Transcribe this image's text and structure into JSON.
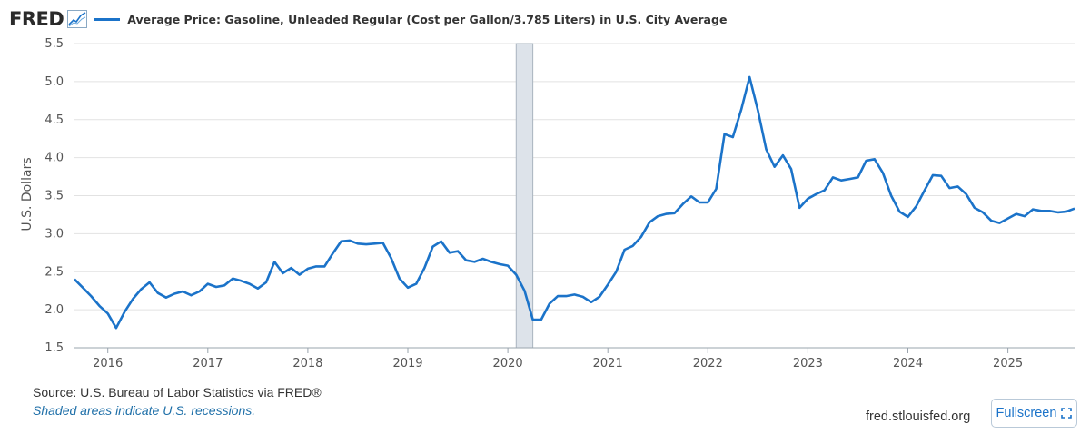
{
  "header": {
    "logo_text": "FRED",
    "logo_icon": "line-chart-icon",
    "series_title": "Average Price: Gasoline, Unleaded Regular (Cost per Gallon/3.785 Liters) in U.S. City Average"
  },
  "footer": {
    "source": "U.S. Bureau of Labor Statistics via FRED®",
    "note": "Shaded areas indicate U.S. recessions.",
    "site": "fred.stlouisfed.org",
    "fullscreen_label": "Fullscreen",
    "fullscreen_icon": "expand-icon"
  },
  "colors": {
    "series": "#1b73c9",
    "recession": "#dde3ea",
    "grid": "#e2e2e2"
  },
  "chart_data": {
    "type": "line",
    "title": "Average Price: Gasoline, Unleaded Regular (Cost per Gallon/3.785 Liters) in U.S. City Average",
    "xlabel": "",
    "ylabel": "U.S. Dollars",
    "xlim": [
      "2015-09",
      "2025-09"
    ],
    "ylim": [
      1.5,
      5.5
    ],
    "y_ticks": [
      "1.5",
      "2.0",
      "2.5",
      "3.0",
      "3.5",
      "4.0",
      "4.5",
      "5.0",
      "5.5"
    ],
    "x_ticks": [
      "2016",
      "2017",
      "2018",
      "2019",
      "2020",
      "2021",
      "2022",
      "2023",
      "2024",
      "2025"
    ],
    "grid": "horizontal",
    "recessions": [
      {
        "start": "2020-02",
        "end": "2020-04"
      }
    ],
    "series": [
      {
        "x": [
          "2015-09",
          "2015-10",
          "2015-11",
          "2015-12",
          "2016-01",
          "2016-02",
          "2016-03",
          "2016-04",
          "2016-05",
          "2016-06",
          "2016-07",
          "2016-08",
          "2016-09",
          "2016-10",
          "2016-11",
          "2016-12",
          "2017-01",
          "2017-02",
          "2017-03",
          "2017-04",
          "2017-05",
          "2017-06",
          "2017-07",
          "2017-08",
          "2017-09",
          "2017-10",
          "2017-11",
          "2017-12",
          "2018-01",
          "2018-02",
          "2018-03",
          "2018-04",
          "2018-05",
          "2018-06",
          "2018-07",
          "2018-08",
          "2018-09",
          "2018-10",
          "2018-11",
          "2018-12",
          "2019-01",
          "2019-02",
          "2019-03",
          "2019-04",
          "2019-05",
          "2019-06",
          "2019-07",
          "2019-08",
          "2019-09",
          "2019-10",
          "2019-11",
          "2019-12",
          "2020-01",
          "2020-02",
          "2020-03",
          "2020-04",
          "2020-05",
          "2020-06",
          "2020-07",
          "2020-08",
          "2020-09",
          "2020-10",
          "2020-11",
          "2020-12",
          "2021-01",
          "2021-02",
          "2021-03",
          "2021-04",
          "2021-05",
          "2021-06",
          "2021-07",
          "2021-08",
          "2021-09",
          "2021-10",
          "2021-11",
          "2021-12",
          "2022-01",
          "2022-02",
          "2022-03",
          "2022-04",
          "2022-05",
          "2022-06",
          "2022-07",
          "2022-08",
          "2022-09",
          "2022-10",
          "2022-11",
          "2022-12",
          "2023-01",
          "2023-02",
          "2023-03",
          "2023-04",
          "2023-05",
          "2023-06",
          "2023-07",
          "2023-08",
          "2023-09",
          "2023-10",
          "2023-11",
          "2023-12",
          "2024-01",
          "2024-02",
          "2024-03",
          "2024-04",
          "2024-05",
          "2024-06",
          "2024-07",
          "2024-08",
          "2024-09",
          "2024-10",
          "2024-11",
          "2024-12",
          "2025-01",
          "2025-02",
          "2025-03",
          "2025-04",
          "2025-05",
          "2025-06",
          "2025-07",
          "2025-08",
          "2025-09"
        ],
        "values": [
          2.4,
          2.29,
          2.18,
          2.05,
          1.95,
          1.76,
          1.97,
          2.14,
          2.27,
          2.36,
          2.22,
          2.16,
          2.21,
          2.24,
          2.19,
          2.24,
          2.34,
          2.3,
          2.32,
          2.41,
          2.38,
          2.34,
          2.28,
          2.36,
          2.63,
          2.48,
          2.55,
          2.46,
          2.54,
          2.57,
          2.57,
          2.74,
          2.9,
          2.91,
          2.87,
          2.86,
          2.87,
          2.88,
          2.68,
          2.41,
          2.29,
          2.34,
          2.55,
          2.83,
          2.9,
          2.75,
          2.77,
          2.65,
          2.63,
          2.67,
          2.63,
          2.6,
          2.58,
          2.46,
          2.25,
          1.87,
          1.87,
          2.08,
          2.18,
          2.18,
          2.2,
          2.17,
          2.1,
          2.17,
          2.33,
          2.5,
          2.79,
          2.84,
          2.96,
          3.15,
          3.23,
          3.26,
          3.27,
          3.39,
          3.49,
          3.41,
          3.41,
          3.59,
          4.31,
          4.27,
          4.63,
          5.06,
          4.62,
          4.11,
          3.88,
          4.03,
          3.85,
          3.34,
          3.46,
          3.52,
          3.57,
          3.74,
          3.7,
          3.72,
          3.74,
          3.96,
          3.98,
          3.8,
          3.5,
          3.29,
          3.22,
          3.36,
          3.57,
          3.77,
          3.76,
          3.6,
          3.62,
          3.52,
          3.34,
          3.28,
          3.17,
          3.14,
          3.2,
          3.26,
          3.23,
          3.32,
          3.3,
          3.3,
          3.28,
          3.29,
          3.33
        ]
      }
    ]
  }
}
